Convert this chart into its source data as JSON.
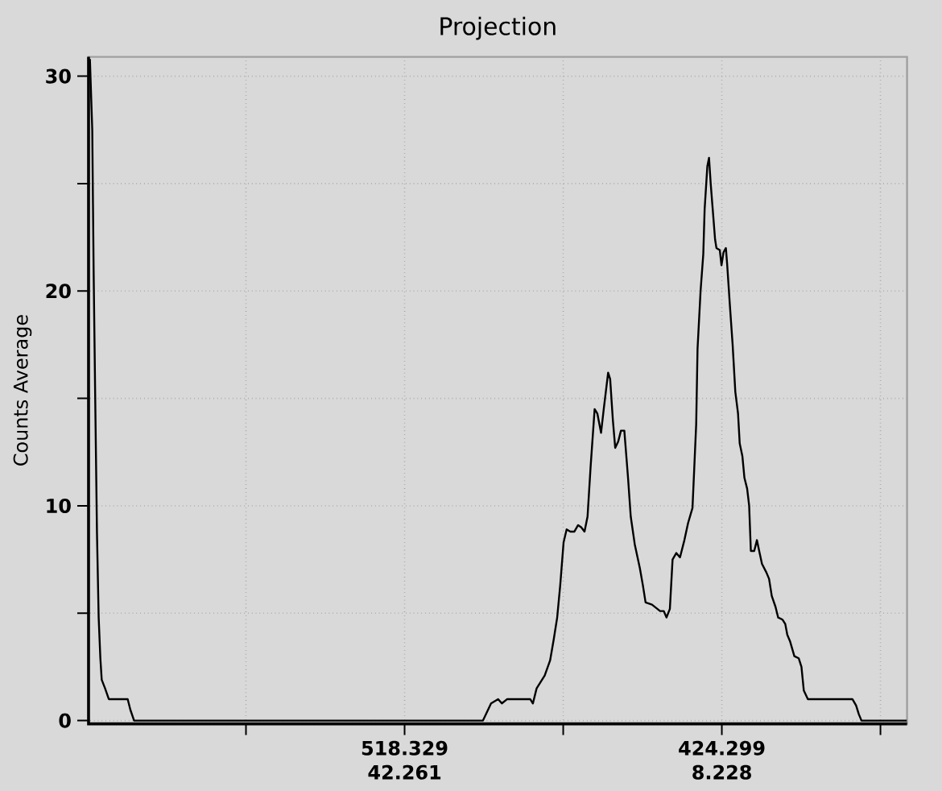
{
  "chart_data": {
    "type": "line",
    "title": "Projection",
    "ylabel": "Counts Average",
    "color": "#000000",
    "grid": true,
    "xlim": [
      612.0,
      369.4
    ],
    "ylim": [
      -0.15,
      30.9
    ],
    "xticks": [
      {
        "value": 565.344,
        "label": null
      },
      518.329,
      {
        "value": 471.314,
        "label": null
      },
      424.299,
      {
        "value": 377.284,
        "label": null
      }
    ],
    "x2lim": [
      76.17,
      -11.64
    ],
    "x2ticks": [
      42.261,
      8.228
    ],
    "yticks": [
      0,
      {
        "value": 5,
        "label": null
      },
      10,
      {
        "value": 15,
        "label": null
      },
      20,
      {
        "value": 25,
        "label": null
      },
      30
    ],
    "x": [
      611.6,
      610.9,
      610.5,
      610.0,
      609.5,
      609.0,
      608.5,
      608.1,
      607.1,
      606.0,
      600.4,
      599.6,
      598.5,
      495.1,
      492.7,
      490.6,
      489.5,
      487.9,
      481.1,
      480.3,
      479.2,
      476.8,
      475.2,
      474.1,
      473.1,
      472.2,
      471.2,
      470.3,
      469.2,
      468.0,
      466.9,
      466.0,
      465.0,
      464.1,
      463.2,
      462.0,
      461.2,
      460.1,
      459.3,
      458.0,
      457.4,
      456.6,
      455.9,
      455.0,
      454.2,
      453.2,
      452.1,
      451.3,
      450.1,
      448.6,
      447.7,
      446.9,
      445.0,
      442.6,
      441.5,
      440.7,
      439.7,
      438.9,
      437.8,
      436.7,
      435.4,
      434.3,
      433.0,
      432.6,
      431.9,
      431.5,
      430.6,
      429.8,
      429.4,
      428.6,
      428.1,
      427.6,
      427.0,
      426.3,
      425.9,
      424.9,
      424.4,
      423.8,
      423.1,
      422.7,
      421.9,
      421.1,
      420.3,
      419.5,
      419.0,
      418.2,
      417.6,
      416.8,
      416.2,
      415.7,
      414.7,
      413.9,
      413.1,
      412.4,
      411.1,
      410.3,
      409.5,
      408.4,
      407.6,
      406.3,
      405.5,
      404.9,
      404.1,
      402.8,
      401.5,
      400.7,
      400.0,
      398.8,
      385.6,
      384.5,
      383.7,
      382.9,
      369.5
    ],
    "values": [
      30.8,
      27.5,
      21.0,
      14.7,
      8.7,
      4.8,
      2.9,
      1.9,
      1.5,
      1.0,
      1.0,
      0.5,
      0,
      0,
      0.8,
      1.0,
      0.8,
      1.0,
      1.0,
      0.8,
      1.5,
      2.1,
      2.8,
      3.8,
      4.8,
      6.3,
      8.3,
      8.9,
      8.8,
      8.8,
      9.1,
      9.0,
      8.8,
      9.5,
      11.8,
      14.5,
      14.3,
      13.4,
      14.5,
      16.2,
      15.9,
      14.0,
      12.7,
      13.0,
      13.5,
      13.5,
      11.3,
      9.5,
      8.2,
      7.1,
      6.3,
      5.5,
      5.4,
      5.1,
      5.1,
      4.8,
      5.2,
      7.5,
      7.8,
      7.6,
      8.4,
      9.2,
      9.9,
      11.3,
      13.8,
      17.3,
      20.0,
      21.7,
      23.8,
      25.8,
      26.2,
      25.0,
      23.8,
      22.4,
      22.0,
      21.9,
      21.2,
      21.8,
      22.0,
      21.2,
      19.3,
      17.5,
      15.3,
      14.3,
      12.9,
      12.3,
      11.3,
      10.8,
      10.0,
      7.9,
      7.9,
      8.4,
      7.8,
      7.3,
      6.9,
      6.6,
      5.8,
      5.3,
      4.8,
      4.7,
      4.5,
      4.0,
      3.7,
      3.0,
      2.9,
      2.5,
      1.4,
      1.0,
      1.0,
      0.7,
      0.3,
      0,
      0
    ]
  }
}
